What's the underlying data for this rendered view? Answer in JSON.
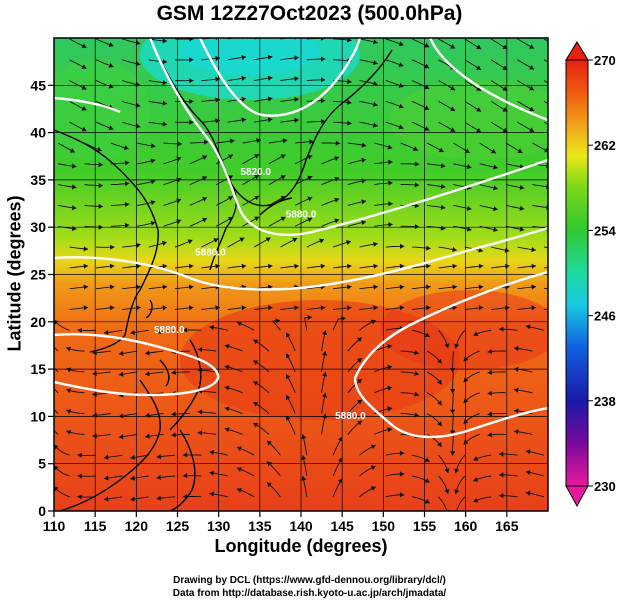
{
  "title": "GSM 12Z27Oct2023 (500.0hPa)",
  "x_axis": {
    "label": "Longitude (degrees)",
    "range": [
      110,
      170
    ],
    "ticks": [
      110,
      115,
      120,
      125,
      130,
      135,
      140,
      145,
      150,
      155,
      160,
      165
    ]
  },
  "y_axis": {
    "label": "Latitude  (degrees)",
    "range": [
      0,
      50
    ],
    "ticks": [
      0,
      5,
      10,
      15,
      20,
      25,
      30,
      35,
      40,
      45
    ]
  },
  "colorbar": {
    "range": [
      230,
      270
    ],
    "labels": [
      "270",
      "262",
      "254",
      "246",
      "238",
      "230"
    ],
    "label_values": [
      270,
      262,
      254,
      246,
      238,
      230
    ],
    "stops": [
      {
        "value": 230,
        "color": "#e8189c"
      },
      {
        "value": 234,
        "color": "#7a0a9e"
      },
      {
        "value": 238,
        "color": "#1a1aa8"
      },
      {
        "value": 243,
        "color": "#1060e0"
      },
      {
        "value": 247,
        "color": "#18c8e0"
      },
      {
        "value": 250,
        "color": "#20d8a0"
      },
      {
        "value": 254,
        "color": "#30c830"
      },
      {
        "value": 258,
        "color": "#78d818"
      },
      {
        "value": 261,
        "color": "#e8e818"
      },
      {
        "value": 264,
        "color": "#f0a018"
      },
      {
        "value": 267,
        "color": "#f05a10"
      },
      {
        "value": 270,
        "color": "#e82010"
      }
    ]
  },
  "contours": [
    {
      "label": "5820.0",
      "label_lon": 134.5,
      "label_lat": 35.5
    },
    {
      "label": "5880.0",
      "label_lon": 129,
      "label_lat": 27
    },
    {
      "label": "5880.0",
      "label_lon": 124,
      "label_lat": 18.8
    },
    {
      "label": "5880.0",
      "label_lon": 146,
      "label_lat": 9.7
    },
    {
      "label": "5880.0",
      "label_lon": 140,
      "label_lat": 31
    }
  ],
  "credits": [
    "Drawing by DCL (https://www.gfd-dennou.org/library/dcl/)",
    "Data from http://database.rish.kyoto-u.ac.jp/arch/jmadata/"
  ]
}
